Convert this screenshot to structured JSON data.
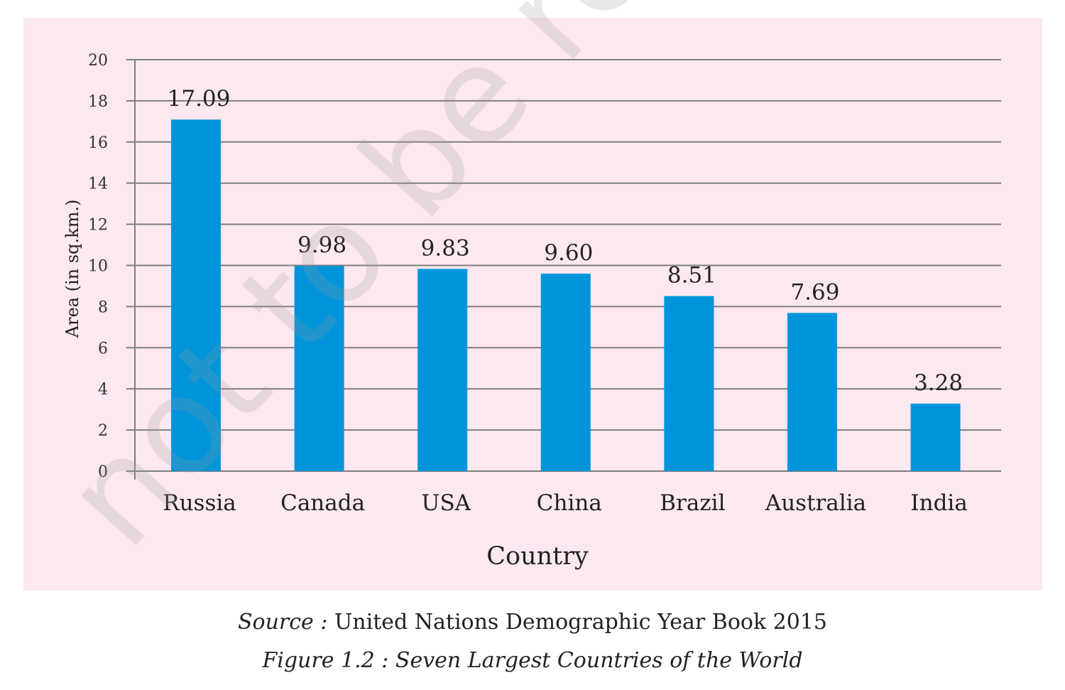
{
  "chart_data": {
    "type": "bar",
    "categories": [
      "Russia",
      "Canada",
      "USA",
      "China",
      "Brazil",
      "Australia",
      "India"
    ],
    "values": [
      17.09,
      9.98,
      9.83,
      9.6,
      8.51,
      7.69,
      3.28
    ],
    "value_labels": [
      "17.09",
      "9.98",
      "9.83",
      "9.60",
      "8.51",
      "7.69",
      "3.28"
    ],
    "yticks": [
      "0",
      "2",
      "4",
      "6",
      "8",
      "10",
      "12",
      "14",
      "16",
      "18",
      "20"
    ],
    "ylim": [
      0,
      20
    ],
    "xlabel": "Country",
    "ylabel": "Area (in sq.km.)",
    "grid": true,
    "legend": "none"
  },
  "colors": {
    "bar": "#0095db",
    "plot_background": "#fce8f1",
    "gridline": "#7f7f7f"
  },
  "caption": {
    "source_label": "Source :",
    "source_text": " United Nations Demographic Year Book 2015",
    "figure_title": "Figure 1.2 : Seven Largest Countries of the World"
  },
  "watermark": {
    "text": "not to be rep © N"
  }
}
